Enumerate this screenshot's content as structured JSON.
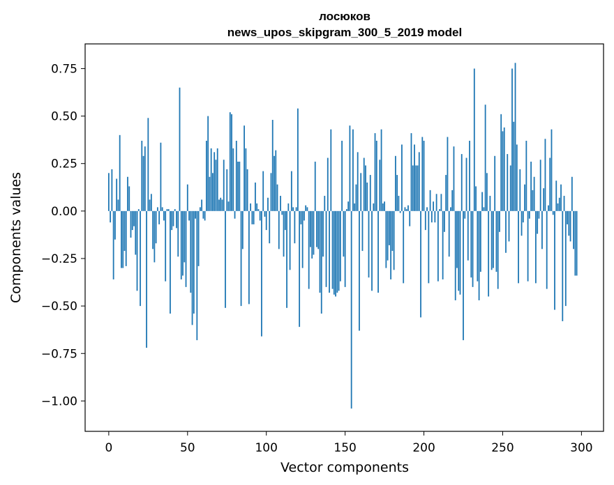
{
  "chart_data": {
    "type": "bar",
    "title": "лосюков",
    "subtitle": "news_upos_skipgram_300_5_2019 model",
    "xlabel": "Vector components",
    "ylabel": "Components values",
    "xlim": [
      -15,
      314
    ],
    "ylim": [
      -1.16,
      0.88
    ],
    "x_ticks": [
      0,
      50,
      100,
      150,
      200,
      250,
      300
    ],
    "x_tick_labels": [
      "0",
      "50",
      "100",
      "150",
      "200",
      "250",
      "300"
    ],
    "y_ticks": [
      0.75,
      0.5,
      0.25,
      0.0,
      -0.25,
      -0.5,
      -0.75,
      -1.0
    ],
    "y_tick_labels": [
      "0.75",
      "0.50",
      "0.25",
      "0.00",
      "−0.25",
      "−0.50",
      "−0.75",
      "−1.00"
    ],
    "grid": false,
    "bar_color": "#1f77b4",
    "values": [
      0.2,
      -0.06,
      0.22,
      -0.36,
      -0.15,
      0.17,
      0.06,
      0.4,
      -0.3,
      -0.3,
      -0.21,
      -0.29,
      0.18,
      0.13,
      -0.14,
      -0.1,
      -0.08,
      -0.23,
      -0.42,
      0.01,
      -0.5,
      0.37,
      0.29,
      0.34,
      -0.72,
      0.49,
      0.06,
      0.09,
      -0.2,
      -0.27,
      -0.17,
      0.02,
      -0.07,
      0.36,
      0.02,
      -0.05,
      -0.37,
      0.01,
      0.01,
      -0.54,
      -0.1,
      -0.08,
      0.01,
      -0.09,
      -0.24,
      0.65,
      -0.36,
      -0.34,
      -0.27,
      -0.4,
      0.14,
      -0.05,
      -0.43,
      -0.6,
      -0.54,
      -0.04,
      -0.68,
      -0.29,
      0.02,
      0.06,
      -0.04,
      -0.05,
      0.37,
      0.5,
      0.18,
      0.33,
      0.2,
      0.31,
      0.27,
      0.33,
      0.06,
      0.07,
      0.06,
      0.27,
      -0.51,
      0.22,
      0.05,
      0.52,
      0.51,
      0.33,
      -0.04,
      0.37,
      0.26,
      0.26,
      -0.5,
      -0.2,
      0.45,
      0.33,
      0.22,
      -0.49,
      0.04,
      -0.07,
      -0.07,
      0.15,
      0.04,
      0.01,
      -0.05,
      -0.66,
      0.21,
      -0.03,
      -0.1,
      0.07,
      -0.17,
      0.2,
      0.48,
      0.29,
      0.32,
      0.14,
      -0.2,
      0.08,
      -0.02,
      -0.24,
      -0.1,
      -0.51,
      0.04,
      -0.31,
      0.21,
      0.02,
      -0.17,
      0.02,
      0.54,
      -0.61,
      -0.07,
      -0.3,
      -0.05,
      0.03,
      0.02,
      -0.41,
      -0.19,
      -0.25,
      -0.23,
      0.26,
      -0.19,
      -0.2,
      -0.43,
      -0.54,
      -0.24,
      0.08,
      -0.4,
      0.28,
      -0.43,
      0.43,
      -0.41,
      -0.44,
      -0.45,
      -0.43,
      -0.42,
      -0.37,
      0.37,
      -0.24,
      -0.4,
      0.01,
      0.05,
      0.45,
      -1.04,
      0.43,
      0.04,
      0.14,
      0.31,
      -0.63,
      0.2,
      -0.21,
      0.28,
      0.24,
      0.15,
      -0.35,
      0.19,
      -0.42,
      0.04,
      0.41,
      0.37,
      -0.43,
      0.27,
      0.43,
      0.04,
      0.05,
      -0.3,
      -0.26,
      -0.18,
      -0.36,
      -0.21,
      -0.31,
      0.29,
      0.19,
      0.08,
      -0.01,
      0.35,
      -0.38,
      0.02,
      0.01,
      0.03,
      -0.08,
      0.41,
      0.24,
      0.35,
      0.24,
      0.24,
      0.31,
      -0.56,
      0.39,
      0.37,
      -0.1,
      0.02,
      -0.38,
      0.11,
      -0.06,
      0.05,
      -0.06,
      0.09,
      -0.37,
      0.01,
      0.09,
      -0.36,
      -0.11,
      0.19,
      0.39,
      -0.24,
      0.02,
      0.11,
      0.34,
      -0.47,
      -0.3,
      -0.42,
      -0.44,
      0.3,
      -0.68,
      -0.04,
      0.28,
      -0.26,
      0.37,
      -0.35,
      -0.4,
      0.75,
      0.13,
      -0.37,
      -0.47,
      -0.32,
      0.1,
      0.02,
      0.56,
      0.2,
      -0.45,
      0.08,
      -0.31,
      -0.3,
      0.29,
      -0.32,
      -0.41,
      -0.11,
      0.51,
      0.42,
      0.44,
      -0.22,
      0.3,
      -0.16,
      0.24,
      0.75,
      0.47,
      0.78,
      0.35,
      -0.38,
      0.22,
      -0.13,
      -0.06,
      0.14,
      0.37,
      -0.37,
      -0.04,
      0.26,
      0.11,
      0.18,
      -0.38,
      -0.12,
      -0.04,
      0.27,
      -0.2,
      0.12,
      0.38,
      -0.41,
      0.03,
      0.28,
      0.43,
      -0.02,
      -0.52,
      0.16,
      0.04,
      0.07,
      0.14,
      -0.58,
      0.08,
      -0.5,
      -0.07,
      -0.13,
      -0.16,
      0.18,
      -0.2,
      -0.34,
      -0.34
    ]
  }
}
